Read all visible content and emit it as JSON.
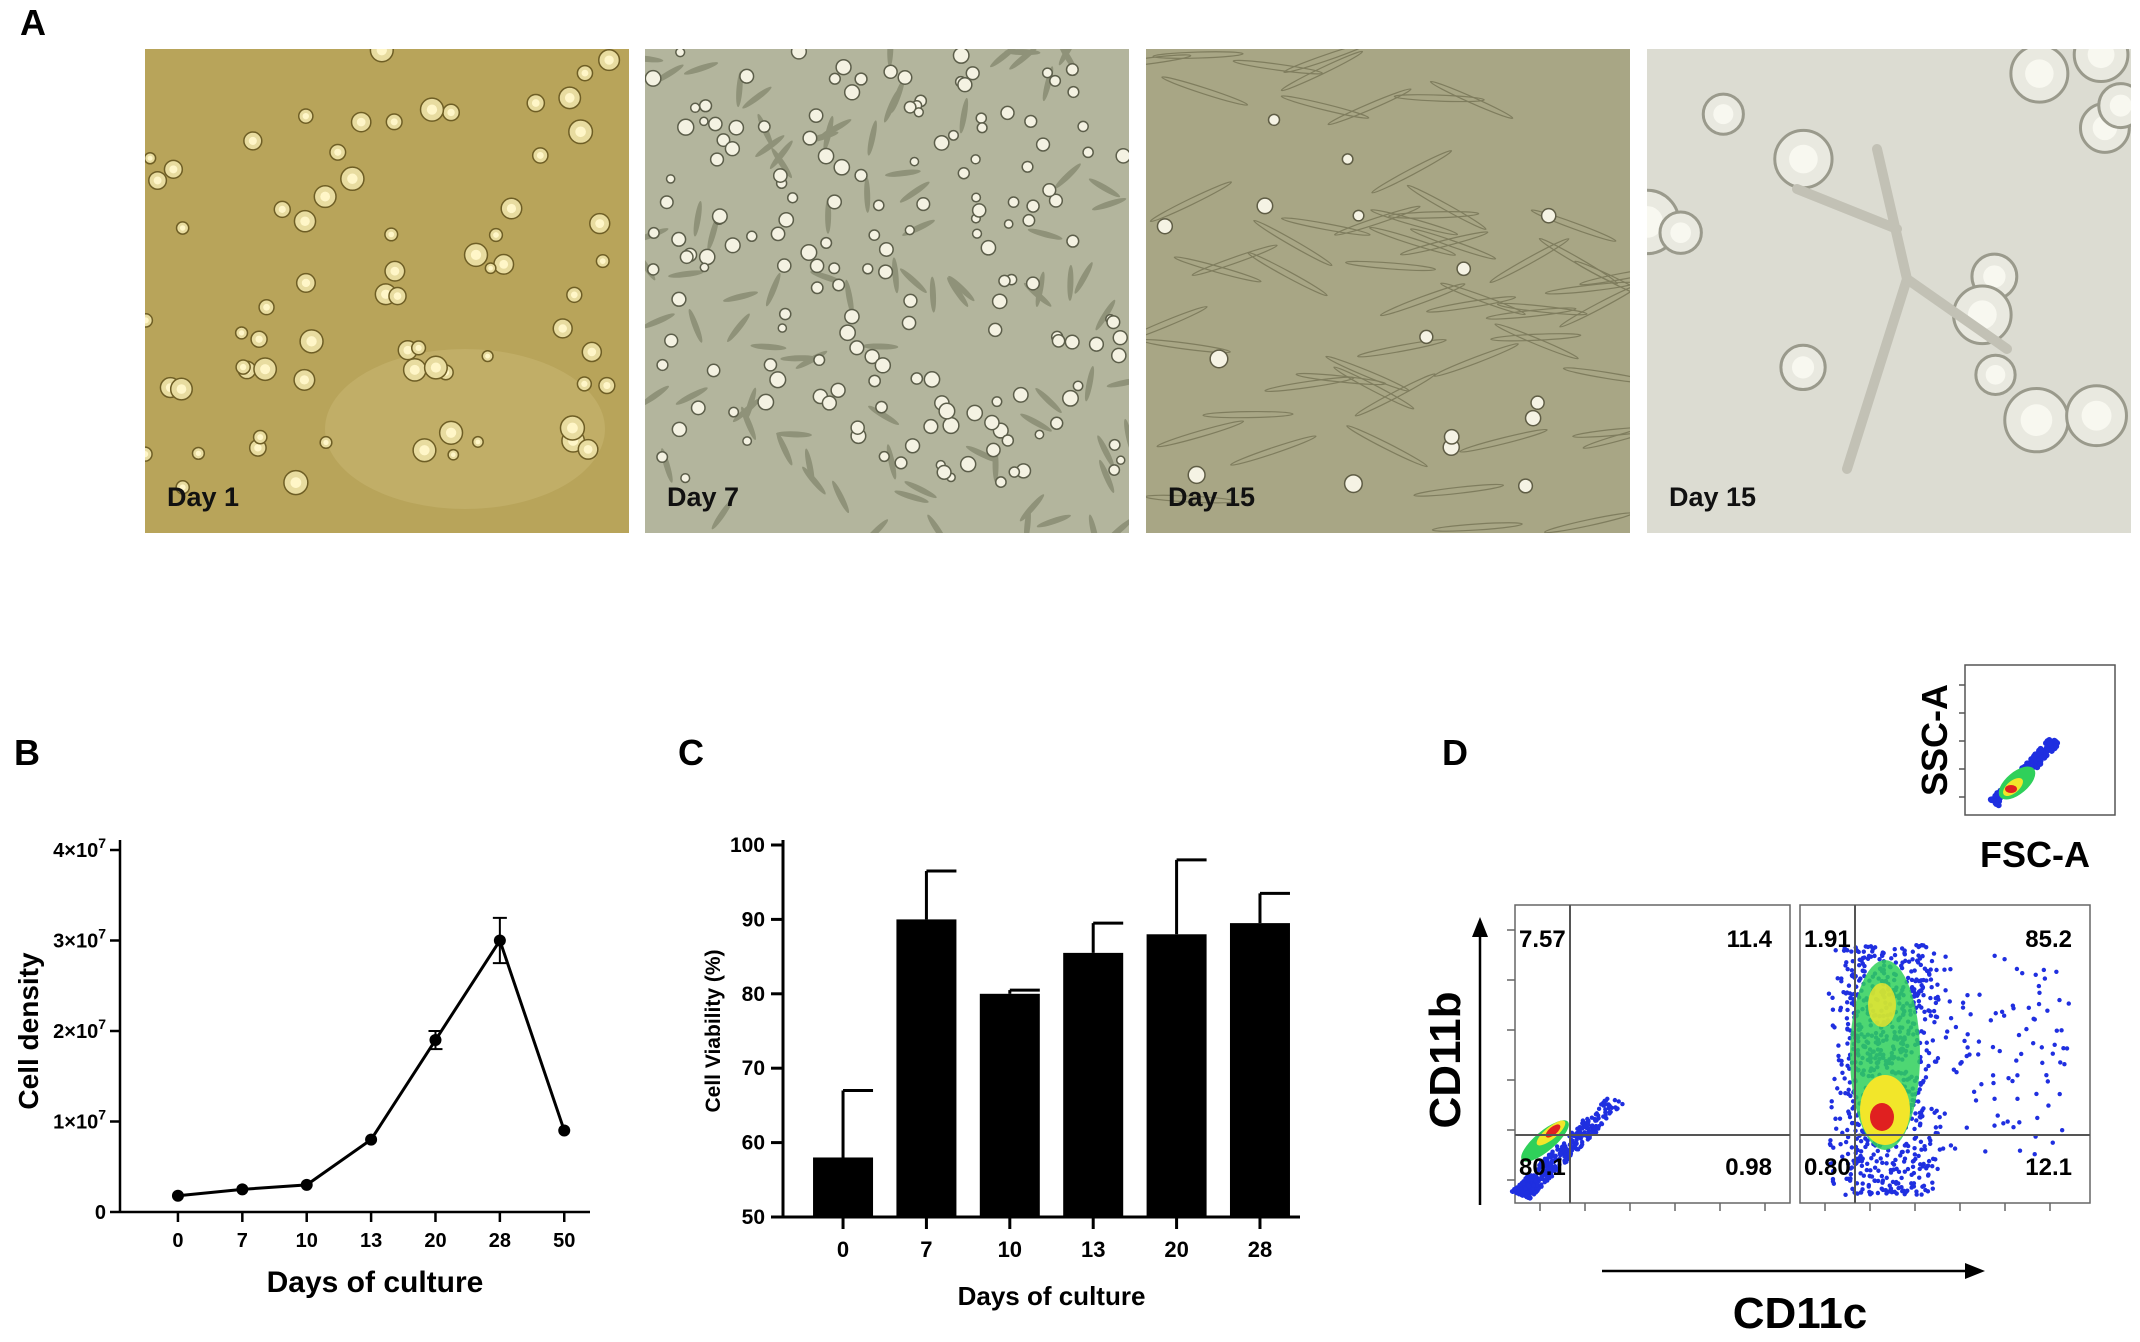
{
  "panels": {
    "a": "A",
    "b": "B",
    "c": "C",
    "d": "D"
  },
  "micrographs": [
    {
      "label": "Day 1",
      "bg": "#b8a45a"
    },
    {
      "label": "Day 7",
      "bg": "#b3b59d"
    },
    {
      "label": "Day 15",
      "bg": "#a8a685"
    },
    {
      "label": "Day 15",
      "bg": "#dcdcd2"
    }
  ],
  "chart_data": [
    {
      "type": "line",
      "xlabel": "Days of culture",
      "ylabel": "Cell density",
      "categories": [
        "0",
        "7",
        "10",
        "13",
        "20",
        "28",
        "50"
      ],
      "values": [
        1800000.0,
        2500000.0,
        3000000.0,
        8000000.0,
        19000000.0,
        30000000.0,
        9000000.0
      ],
      "errors": [
        0,
        0,
        0,
        0,
        1000000.0,
        2500000.0,
        0
      ],
      "ylim": [
        0,
        40000000.0
      ],
      "yticks": [
        {
          "value": 0,
          "base": "0",
          "exp": ""
        },
        {
          "value": 10000000.0,
          "base": "1×10",
          "exp": "7"
        },
        {
          "value": 20000000.0,
          "base": "2×10",
          "exp": "7"
        },
        {
          "value": 30000000.0,
          "base": "3×10",
          "exp": "7"
        },
        {
          "value": 40000000.0,
          "base": "4×10",
          "exp": "7"
        }
      ],
      "grid": false
    },
    {
      "type": "bar",
      "xlabel": "Days of  culture",
      "ylabel": "Cell Viability (%)",
      "categories": [
        "0",
        "7",
        "10",
        "13",
        "20",
        "28"
      ],
      "values": [
        58,
        90,
        80,
        85.5,
        88,
        89.5
      ],
      "errors": [
        9,
        6.5,
        0.5,
        4,
        10,
        4
      ],
      "ylim": [
        50,
        100
      ],
      "yticks": [
        "50",
        "60",
        "70",
        "80",
        "90",
        "100"
      ],
      "grid": false
    },
    {
      "type": "scatter",
      "title": "",
      "gate": {
        "xlabel": "FSC-A",
        "ylabel": "SSC-A"
      },
      "xlabel": "CD11c",
      "ylabel": "CD11b",
      "plots": [
        {
          "quadrants": {
            "upper_left": "7.57",
            "upper_right": "11.4",
            "lower_left": "80.1",
            "lower_right": "0.98"
          }
        },
        {
          "quadrants": {
            "upper_left": "1.91",
            "upper_right": "85.2",
            "lower_left": "0.80",
            "lower_right": "12.1"
          }
        }
      ]
    }
  ]
}
